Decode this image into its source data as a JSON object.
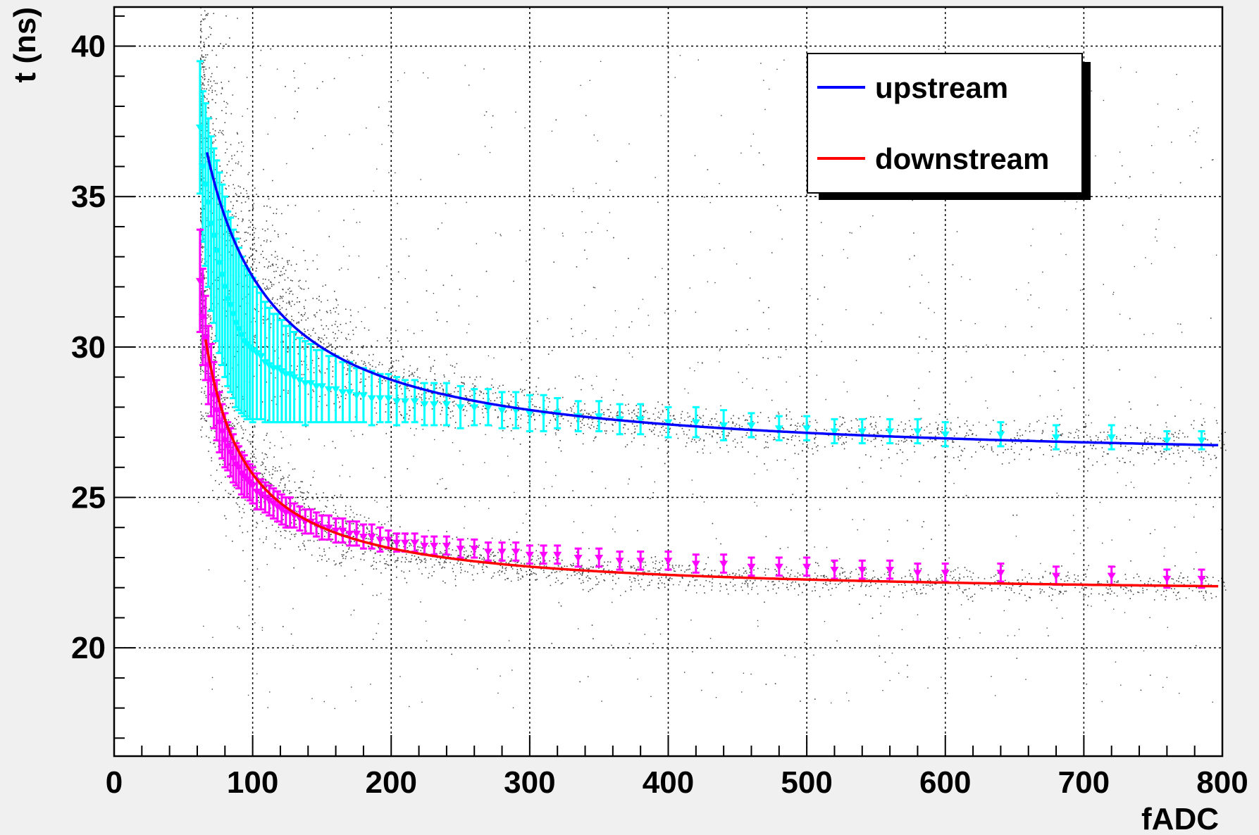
{
  "chart_data": {
    "type": "scatter",
    "title": "",
    "xlabel": "fADC",
    "ylabel": "t (ns)",
    "xlim": [
      0,
      800
    ],
    "ylim": [
      16.4,
      41.3
    ],
    "x_ticks": [
      0,
      100,
      200,
      300,
      400,
      500,
      600,
      700,
      800
    ],
    "y_ticks": [
      20,
      25,
      30,
      35,
      40
    ],
    "x_tick_labels": [
      "0",
      "100",
      "200",
      "300",
      "400",
      "500",
      "600",
      "700",
      "800"
    ],
    "y_tick_labels": [
      "20",
      "25",
      "30",
      "35",
      "40"
    ],
    "grid": true,
    "legend_position": "top-right",
    "legend": [
      {
        "label": "upstream",
        "color": "#0000ff"
      },
      {
        "label": "downstream",
        "color": "#ff0000"
      }
    ],
    "fits": [
      {
        "name": "upstream",
        "color": "#0000ff",
        "form": "a + b/(x - c)",
        "a": 26.07,
        "b": 520,
        "c": 17,
        "x_range": [
          67,
          797
        ]
      },
      {
        "name": "downstream",
        "color": "#ff0000",
        "form": "a + b/(x - c)",
        "a": 21.7,
        "b": 265,
        "c": 35,
        "x_range": [
          66,
          797
        ]
      }
    ],
    "series": [
      {
        "name": "upstream",
        "marker_color": "#00ffff",
        "x": [
          62,
          64,
          66,
          68,
          70,
          72,
          74,
          76,
          78,
          80,
          82,
          84,
          86,
          88,
          90,
          92,
          94,
          96,
          98,
          100,
          103,
          106,
          109,
          112,
          115,
          118,
          121,
          124,
          127,
          130,
          134,
          138,
          142,
          146,
          150,
          155,
          160,
          165,
          170,
          175,
          180,
          186,
          192,
          198,
          204,
          210,
          217,
          224,
          231,
          240,
          250,
          260,
          270,
          280,
          290,
          300,
          310,
          320,
          335,
          350,
          365,
          380,
          400,
          420,
          440,
          460,
          480,
          500,
          520,
          540,
          560,
          580,
          600,
          640,
          680,
          720,
          760,
          785
        ],
        "y": [
          37.3,
          36.0,
          35.4,
          34.8,
          34.1,
          33.7,
          33.2,
          32.8,
          32.4,
          32.0,
          31.6,
          31.4,
          31.1,
          30.8,
          30.6,
          30.4,
          30.2,
          30.1,
          30.0,
          29.9,
          29.8,
          29.7,
          29.5,
          29.4,
          29.3,
          29.3,
          29.2,
          29.1,
          29.1,
          29.0,
          28.9,
          28.8,
          28.8,
          28.7,
          28.7,
          28.6,
          28.6,
          28.5,
          28.5,
          28.4,
          28.4,
          28.3,
          28.3,
          28.3,
          28.2,
          28.2,
          28.2,
          28.1,
          28.1,
          28.1,
          28.0,
          28.0,
          28.0,
          27.9,
          27.9,
          27.8,
          27.8,
          27.8,
          27.7,
          27.7,
          27.6,
          27.6,
          27.5,
          27.5,
          27.4,
          27.4,
          27.3,
          27.3,
          27.2,
          27.2,
          27.2,
          27.2,
          27.1,
          27.1,
          27.0,
          27.0,
          26.9,
          26.9
        ],
        "err": [
          2.2,
          2.5,
          2.7,
          2.8,
          2.9,
          2.9,
          3.0,
          3.0,
          3.0,
          3.0,
          2.9,
          2.9,
          2.8,
          2.8,
          2.7,
          2.6,
          2.5,
          2.5,
          2.4,
          2.4,
          2.2,
          2.1,
          2.0,
          1.9,
          1.8,
          1.8,
          1.7,
          1.6,
          1.6,
          1.5,
          1.4,
          1.4,
          1.3,
          1.2,
          1.2,
          1.1,
          1.1,
          1.0,
          1.0,
          0.9,
          0.9,
          0.9,
          0.8,
          0.8,
          0.8,
          0.7,
          0.7,
          0.7,
          0.7,
          0.7,
          0.7,
          0.6,
          0.6,
          0.6,
          0.6,
          0.6,
          0.6,
          0.5,
          0.5,
          0.5,
          0.5,
          0.5,
          0.5,
          0.5,
          0.5,
          0.4,
          0.4,
          0.4,
          0.4,
          0.4,
          0.4,
          0.4,
          0.4,
          0.4,
          0.4,
          0.4,
          0.3,
          0.3
        ]
      },
      {
        "name": "downstream",
        "marker_color": "#ff00ff",
        "x": [
          62,
          64,
          66,
          68,
          70,
          72,
          74,
          76,
          78,
          80,
          82,
          84,
          86,
          88,
          90,
          92,
          94,
          96,
          98,
          100,
          103,
          106,
          109,
          112,
          115,
          118,
          121,
          124,
          127,
          130,
          134,
          138,
          142,
          146,
          150,
          155,
          160,
          165,
          170,
          175,
          180,
          186,
          192,
          198,
          204,
          210,
          217,
          224,
          231,
          240,
          250,
          260,
          270,
          280,
          290,
          300,
          310,
          320,
          335,
          350,
          365,
          380,
          400,
          420,
          440,
          460,
          480,
          500,
          520,
          540,
          560,
          580,
          600,
          640,
          680,
          720,
          760,
          785
        ],
        "y": [
          32.2,
          31.0,
          30.3,
          29.4,
          28.9,
          28.4,
          27.9,
          27.5,
          27.2,
          26.9,
          26.7,
          26.5,
          26.3,
          26.1,
          26.0,
          25.8,
          25.7,
          25.6,
          25.5,
          25.4,
          25.2,
          25.1,
          25.0,
          24.9,
          24.8,
          24.7,
          24.6,
          24.5,
          24.5,
          24.4,
          24.3,
          24.2,
          24.2,
          24.1,
          24.0,
          24.0,
          23.9,
          23.9,
          23.8,
          23.8,
          23.7,
          23.7,
          23.6,
          23.6,
          23.5,
          23.5,
          23.5,
          23.4,
          23.4,
          23.4,
          23.3,
          23.3,
          23.2,
          23.2,
          23.2,
          23.1,
          23.1,
          23.1,
          23.0,
          23.0,
          22.9,
          22.9,
          22.9,
          22.8,
          22.8,
          22.7,
          22.7,
          22.7,
          22.6,
          22.6,
          22.6,
          22.5,
          22.5,
          22.5,
          22.4,
          22.4,
          22.3,
          22.3
        ],
        "err": [
          1.7,
          1.6,
          1.4,
          1.3,
          1.2,
          1.1,
          1.0,
          1.0,
          0.9,
          0.9,
          0.8,
          0.8,
          0.8,
          0.7,
          0.7,
          0.7,
          0.7,
          0.6,
          0.6,
          0.6,
          0.6,
          0.5,
          0.5,
          0.5,
          0.5,
          0.5,
          0.5,
          0.5,
          0.5,
          0.4,
          0.4,
          0.4,
          0.4,
          0.4,
          0.4,
          0.4,
          0.4,
          0.4,
          0.4,
          0.4,
          0.4,
          0.4,
          0.4,
          0.3,
          0.3,
          0.3,
          0.3,
          0.3,
          0.3,
          0.3,
          0.3,
          0.3,
          0.3,
          0.3,
          0.3,
          0.3,
          0.3,
          0.3,
          0.3,
          0.3,
          0.3,
          0.3,
          0.3,
          0.3,
          0.3,
          0.3,
          0.3,
          0.3,
          0.3,
          0.3,
          0.3,
          0.3,
          0.3,
          0.3,
          0.3,
          0.3,
          0.3,
          0.3
        ]
      }
    ]
  }
}
